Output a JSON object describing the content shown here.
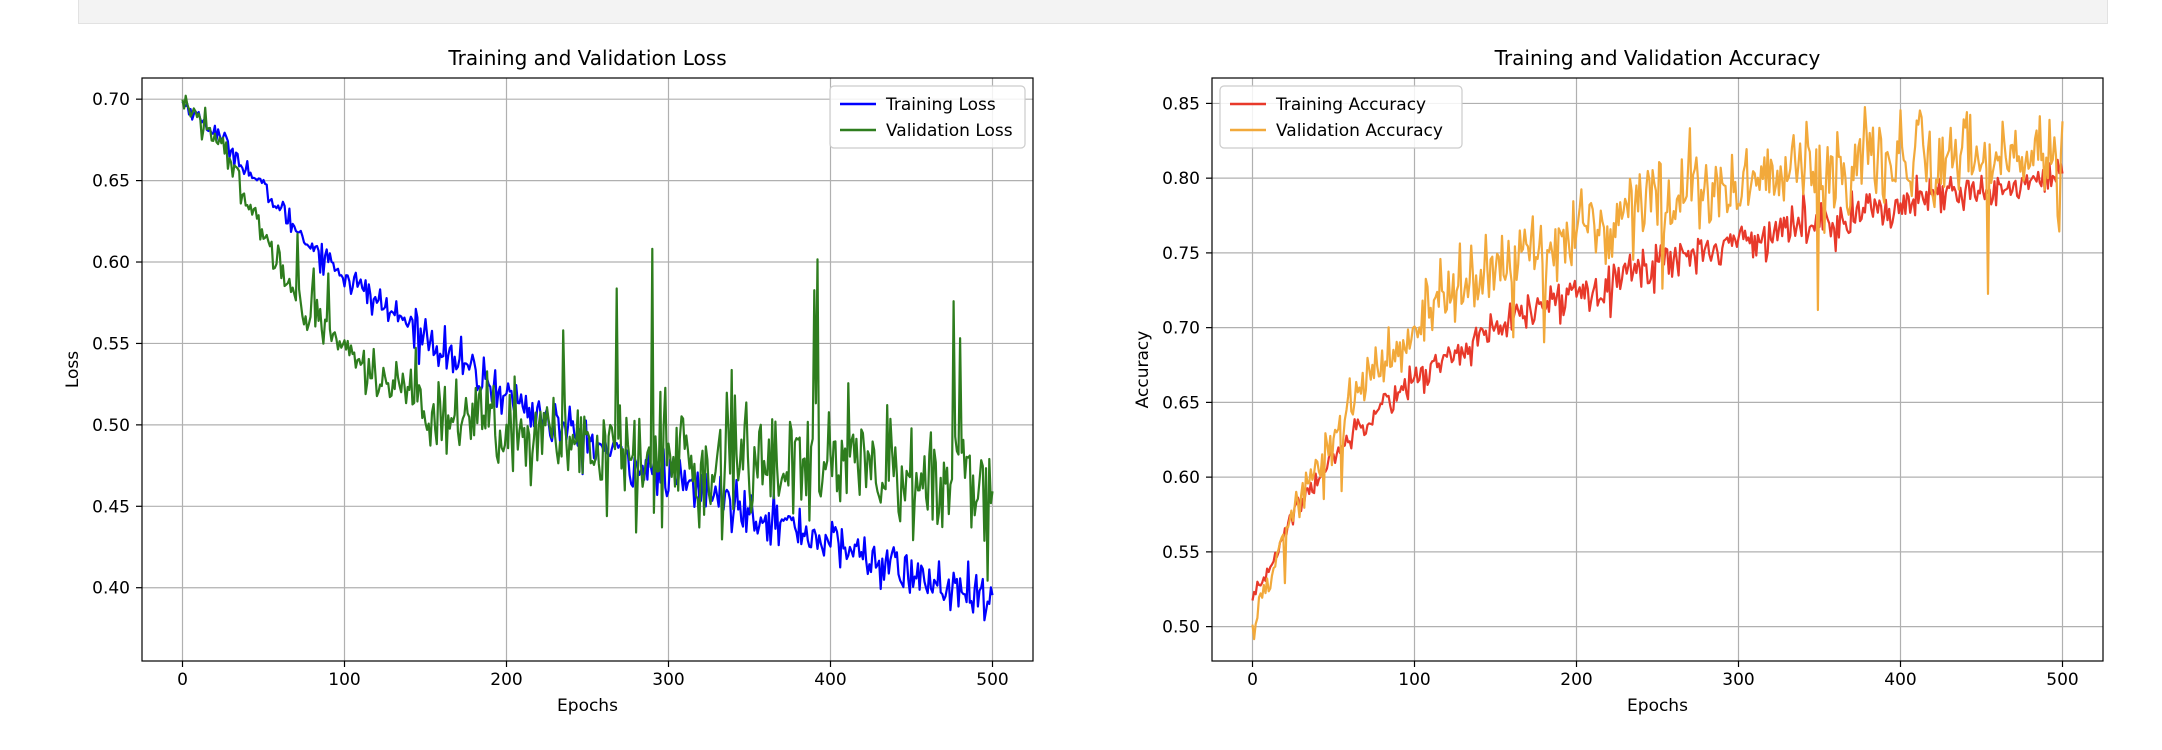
{
  "chart_data": [
    {
      "type": "line",
      "title": "Training and Validation Loss",
      "xlabel": "Epochs",
      "ylabel": "Loss",
      "xlim": [
        -25,
        525
      ],
      "ylim": [
        0.355,
        0.713
      ],
      "xticks": [
        0,
        100,
        200,
        300,
        400,
        500
      ],
      "yticks": [
        0.4,
        0.45,
        0.5,
        0.55,
        0.6,
        0.65,
        0.7
      ],
      "ytick_labels": [
        "0.40",
        "0.45",
        "0.50",
        "0.55",
        "0.60",
        "0.65",
        "0.70"
      ],
      "grid": true,
      "legend_position": "top-right",
      "noisy": true,
      "series": [
        {
          "name": "Training Loss",
          "color": "#0000ff",
          "x": [
            0,
            25,
            50,
            75,
            100,
            125,
            150,
            175,
            200,
            225,
            250,
            275,
            300,
            325,
            350,
            375,
            400,
            425,
            450,
            475,
            500
          ],
          "y": [
            0.698,
            0.675,
            0.645,
            0.615,
            0.592,
            0.572,
            0.555,
            0.535,
            0.518,
            0.503,
            0.49,
            0.478,
            0.468,
            0.458,
            0.448,
            0.438,
            0.428,
            0.418,
            0.408,
            0.398,
            0.39
          ]
        },
        {
          "name": "Validation Loss",
          "color": "#2e7d1e",
          "x": [
            0,
            25,
            50,
            75,
            100,
            125,
            150,
            175,
            200,
            225,
            250,
            275,
            300,
            325,
            350,
            375,
            400,
            425,
            450,
            475,
            500
          ],
          "y": [
            0.698,
            0.67,
            0.618,
            0.57,
            0.545,
            0.527,
            0.512,
            0.502,
            0.495,
            0.49,
            0.487,
            0.485,
            0.483,
            0.48,
            0.477,
            0.474,
            0.473,
            0.472,
            0.47,
            0.469,
            0.468
          ]
        }
      ]
    },
    {
      "type": "line",
      "title": "Training and Validation Accuracy",
      "xlabel": "Epochs",
      "ylabel": "Accuracy",
      "xlim": [
        -25,
        525
      ],
      "ylim": [
        0.477,
        0.867
      ],
      "xticks": [
        0,
        100,
        200,
        300,
        400,
        500
      ],
      "yticks": [
        0.5,
        0.55,
        0.6,
        0.65,
        0.7,
        0.75,
        0.8,
        0.85
      ],
      "ytick_labels": [
        "0.50",
        "0.55",
        "0.60",
        "0.65",
        "0.70",
        "0.75",
        "0.80",
        "0.85"
      ],
      "grid": true,
      "legend_position": "top-left",
      "noisy": true,
      "series": [
        {
          "name": "Training Accuracy",
          "color": "#e8392a",
          "x": [
            0,
            25,
            50,
            75,
            100,
            125,
            150,
            175,
            200,
            225,
            250,
            275,
            300,
            325,
            350,
            375,
            400,
            425,
            450,
            475,
            500
          ],
          "y": [
            0.515,
            0.575,
            0.615,
            0.645,
            0.665,
            0.683,
            0.698,
            0.712,
            0.724,
            0.734,
            0.743,
            0.751,
            0.758,
            0.765,
            0.771,
            0.777,
            0.782,
            0.787,
            0.791,
            0.795,
            0.798
          ]
        },
        {
          "name": "Validation Accuracy",
          "color": "#f2a93b",
          "x": [
            0,
            25,
            50,
            75,
            100,
            125,
            150,
            175,
            200,
            225,
            250,
            275,
            300,
            325,
            350,
            375,
            400,
            425,
            450,
            475,
            500
          ],
          "y": [
            0.5,
            0.575,
            0.63,
            0.67,
            0.7,
            0.722,
            0.74,
            0.755,
            0.766,
            0.776,
            0.784,
            0.79,
            0.795,
            0.8,
            0.804,
            0.808,
            0.811,
            0.814,
            0.816,
            0.818,
            0.82
          ]
        }
      ]
    }
  ]
}
